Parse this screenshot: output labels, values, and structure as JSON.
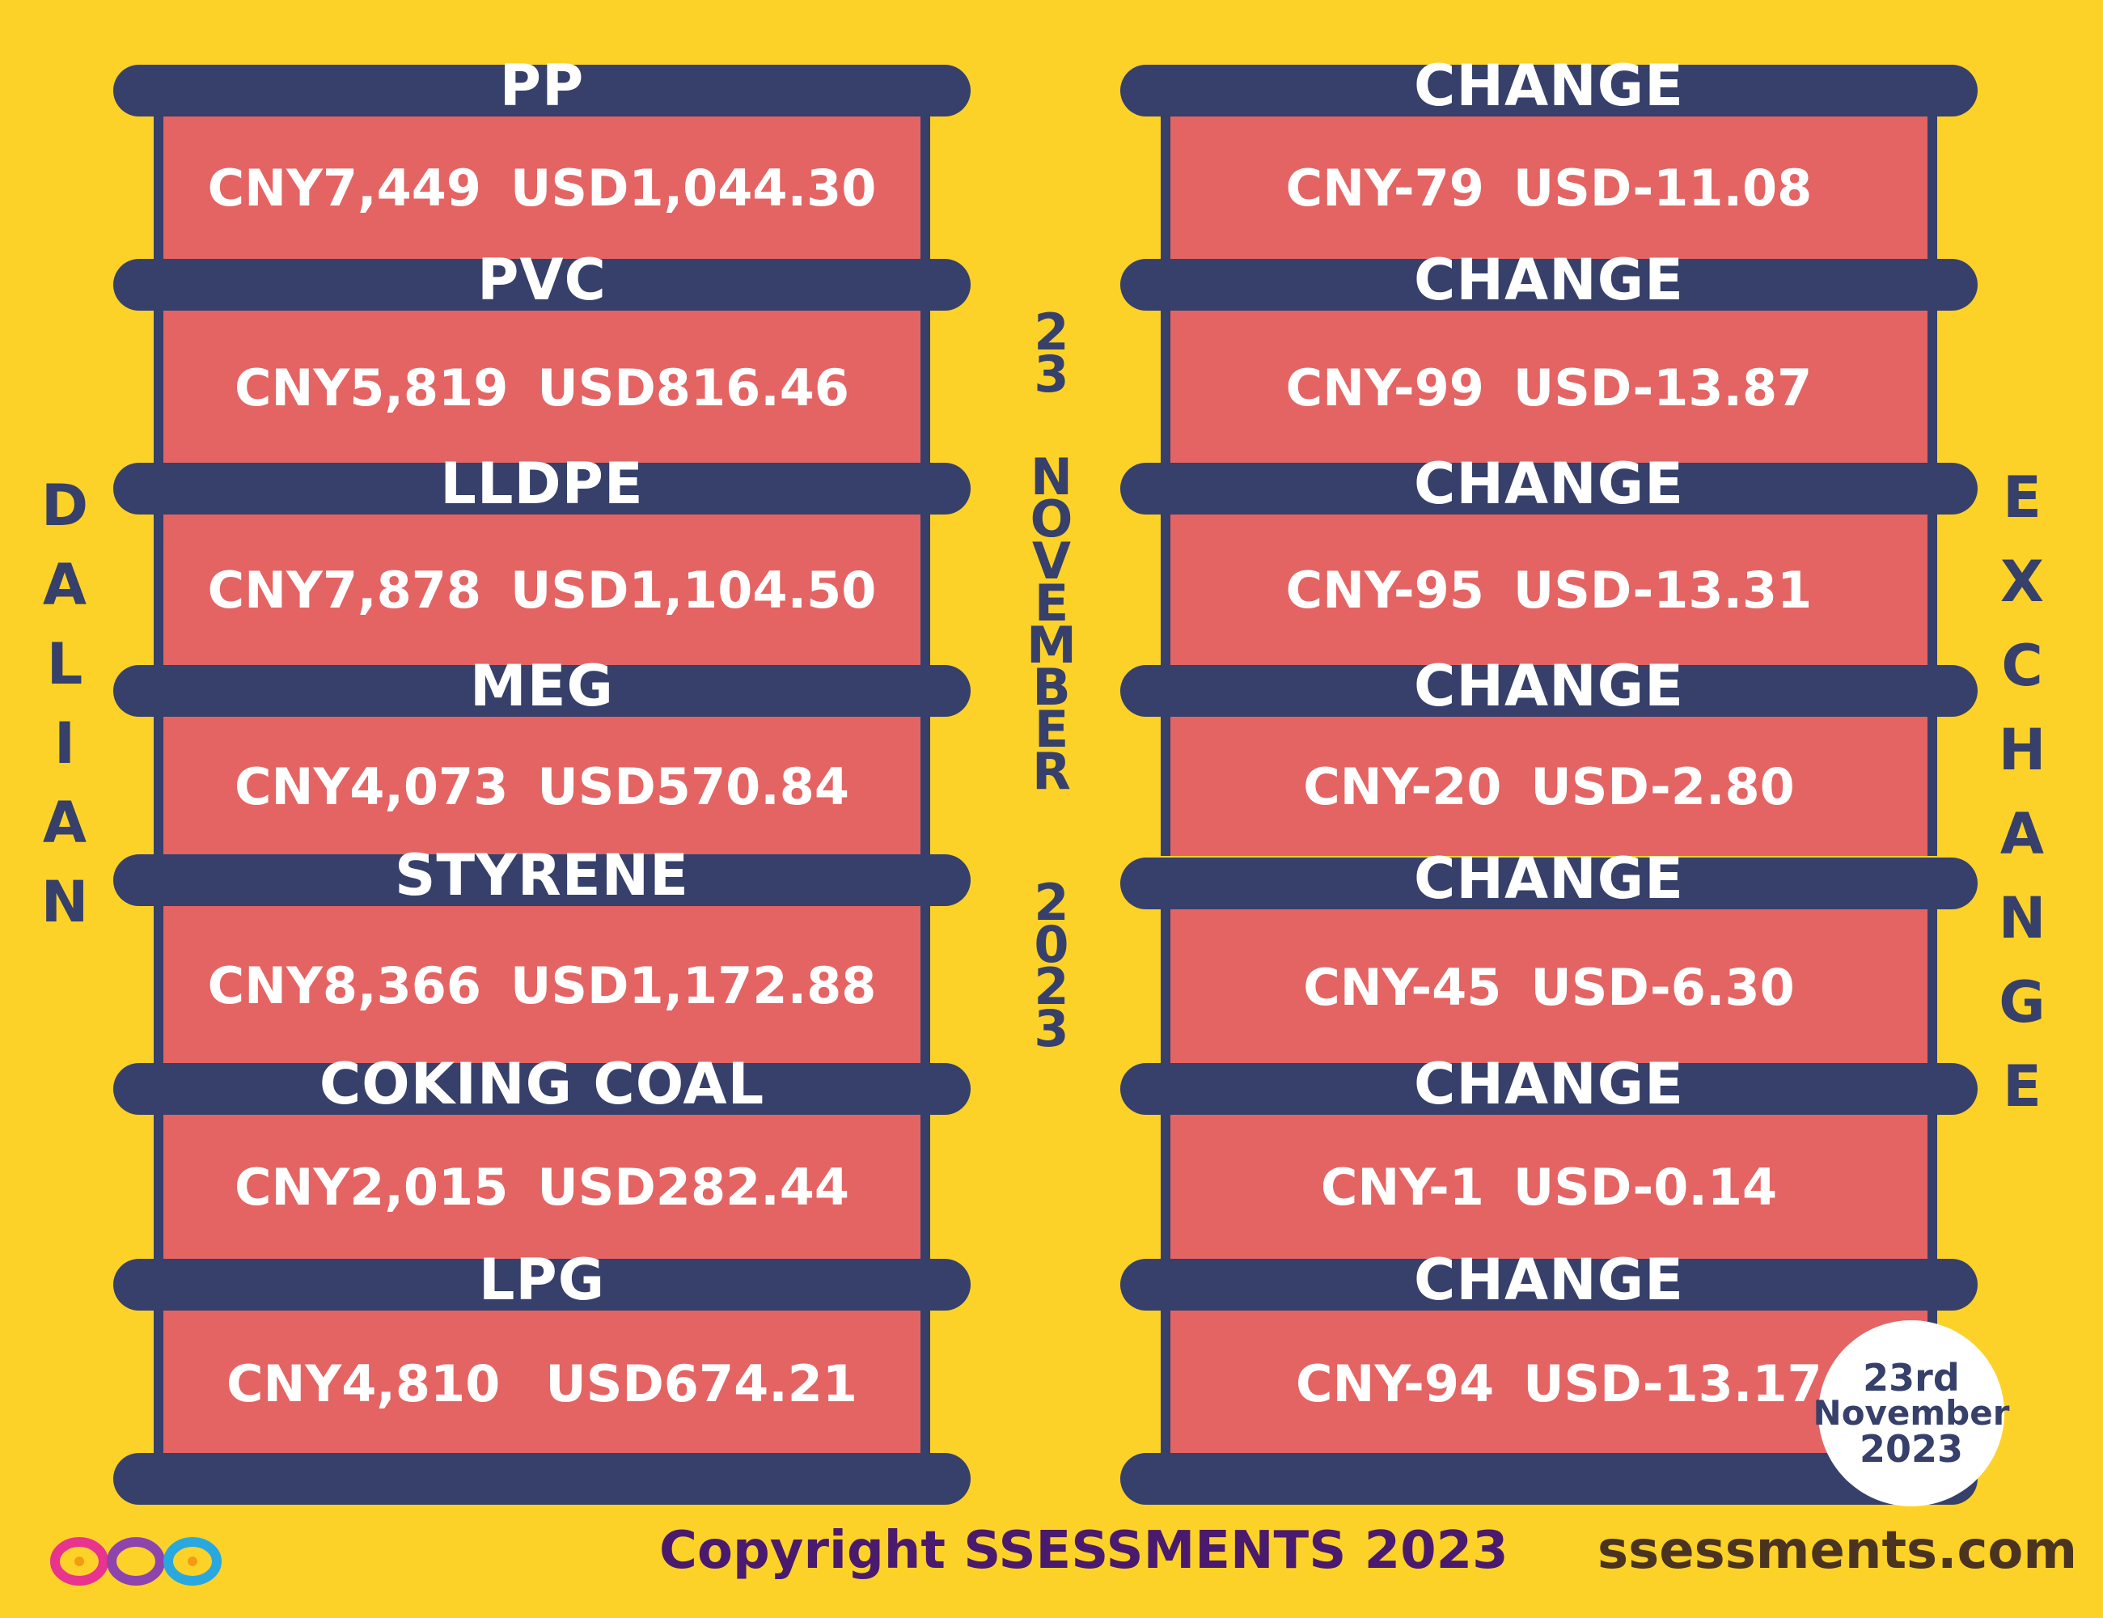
{
  "left_title_letters": [
    "D",
    "A",
    "L",
    "I",
    "A",
    "N"
  ],
  "right_title_letters": [
    "E",
    "X",
    "C",
    "H",
    "A",
    "N",
    "G",
    "E"
  ],
  "center_date": {
    "day": [
      "2",
      "3"
    ],
    "month": [
      "N",
      "O",
      "V",
      "E",
      "M",
      "B",
      "E",
      "R"
    ],
    "year": [
      "2",
      "0",
      "2",
      "3"
    ]
  },
  "products": [
    {
      "name": "PP",
      "cny": "CNY7,449",
      "usd": "USD1,044.30"
    },
    {
      "name": "PVC",
      "cny": "CNY5,819",
      "usd": "USD816.46"
    },
    {
      "name": "LLDPE",
      "cny": "CNY7,878",
      "usd": "USD1,104.50"
    },
    {
      "name": "MEG",
      "cny": "CNY4,073",
      "usd": "USD570.84"
    },
    {
      "name": "STYRENE",
      "cny": "CNY8,366",
      "usd": "USD1,172.88"
    },
    {
      "name": "COKING COAL",
      "cny": "CNY2,015",
      "usd": "USD282.44"
    },
    {
      "name": "LPG",
      "cny": "CNY4,810",
      "usd": "USD674.21"
    }
  ],
  "changes": [
    {
      "label": "CHANGE",
      "cny": "CNY-79",
      "usd": "USD-11.08"
    },
    {
      "label": "CHANGE",
      "cny": "CNY-99",
      "usd": "USD-13.87"
    },
    {
      "label": "CHANGE",
      "cny": "CNY-95",
      "usd": "USD-13.31"
    },
    {
      "label": "CHANGE",
      "cny": "CNY-20",
      "usd": "USD-2.80"
    },
    {
      "label": "CHANGE",
      "cny": "CNY-45",
      "usd": "USD-6.30"
    },
    {
      "label": "CHANGE",
      "cny": "CNY-1",
      "usd": "USD-0.14"
    },
    {
      "label": "CHANGE",
      "cny": "CNY-94",
      "usd": "USD-13.17"
    }
  ],
  "badge": {
    "line1": "23rd",
    "line2": "November",
    "line3": "2023"
  },
  "footer": {
    "copyright": "Copyright SSESSMENTS 2023",
    "website": "ssessments.com"
  },
  "logo_icon": "infinity-loops-logo"
}
